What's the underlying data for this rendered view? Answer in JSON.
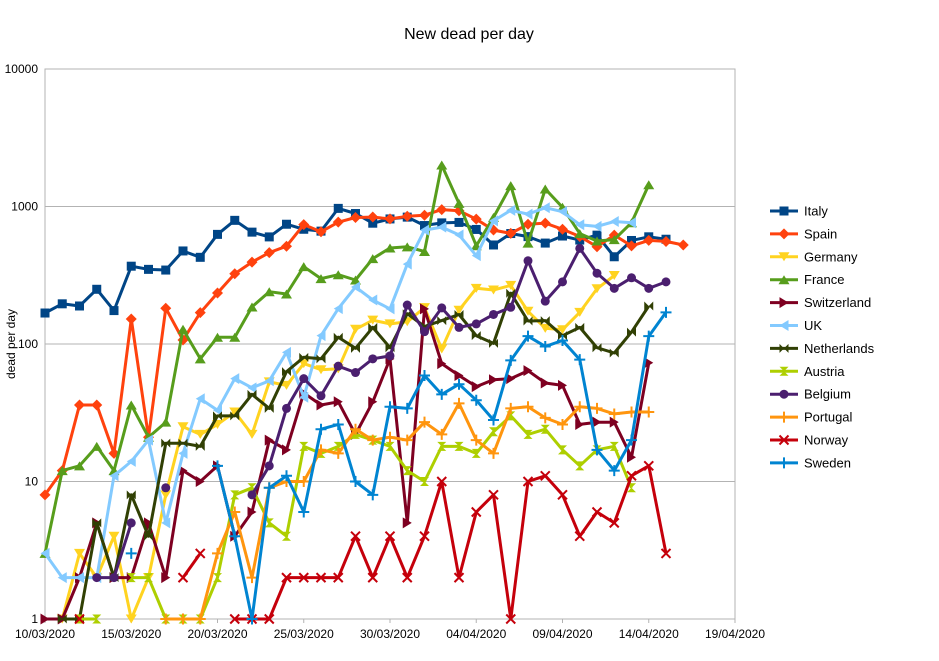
{
  "chart_data": {
    "type": "line",
    "title": "New dead per day",
    "ylabel": "dead per day",
    "xlabel": "",
    "y_scale": "log",
    "ylim": [
      1,
      10000
    ],
    "y_ticks": [
      "1",
      "10",
      "100",
      "1000",
      "10000"
    ],
    "xlim": [
      "2020-03-10",
      "2020-04-19"
    ],
    "x_ticks": [
      "10/03/2020",
      "15/03/2020",
      "20/03/2020",
      "25/03/2020",
      "30/03/2020",
      "04/04/2020",
      "09/04/2020",
      "14/04/2020",
      "19/04/2020"
    ],
    "grid": "horizontal",
    "legend_position": "right",
    "x_dates": [
      "2020-03-10",
      "2020-03-11",
      "2020-03-12",
      "2020-03-13",
      "2020-03-14",
      "2020-03-15",
      "2020-03-16",
      "2020-03-17",
      "2020-03-18",
      "2020-03-19",
      "2020-03-20",
      "2020-03-21",
      "2020-03-22",
      "2020-03-23",
      "2020-03-24",
      "2020-03-25",
      "2020-03-26",
      "2020-03-27",
      "2020-03-28",
      "2020-03-29",
      "2020-03-30",
      "2020-03-31",
      "2020-04-01",
      "2020-04-02",
      "2020-04-03",
      "2020-04-04",
      "2020-04-05",
      "2020-04-06",
      "2020-04-07",
      "2020-04-08",
      "2020-04-09",
      "2020-04-10",
      "2020-04-11",
      "2020-04-12",
      "2020-04-13",
      "2020-04-14",
      "2020-04-15",
      "2020-04-16",
      "2020-04-17"
    ],
    "series": [
      {
        "name": "Italy",
        "color": "#004586",
        "marker": "square",
        "values": [
          168,
          196,
          189,
          250,
          175,
          368,
          349,
          345,
          475,
          427,
          627,
          793,
          651,
          601,
          743,
          683,
          662,
          969,
          889,
          756,
          812,
          837,
          727,
          760,
          766,
          681,
          525,
          636,
          604,
          542,
          610,
          570,
          619,
          431,
          566,
          602,
          578,
          null,
          null
        ]
      },
      {
        "name": "Spain",
        "color": "#ff420e",
        "marker": "diamond",
        "values": [
          8,
          12,
          36,
          36,
          16,
          152,
          21,
          182,
          107,
          169,
          235,
          324,
          394,
          462,
          514,
          738,
          655,
          769,
          832,
          838,
          812,
          849,
          864,
          950,
          932,
          809,
          674,
          637,
          743,
          757,
          683,
          605,
          510,
          619,
          517,
          567,
          557,
          525,
          null
        ]
      },
      {
        "name": "Germany",
        "color": "#ffd320",
        "marker": "triangle-down",
        "values": [
          null,
          1,
          3,
          2,
          4,
          1,
          2,
          8,
          25,
          22,
          26,
          32,
          22,
          53,
          50,
          72,
          65,
          66,
          128,
          149,
          140,
          145,
          184,
          92,
          176,
          254,
          247,
          267,
          173,
          130,
          127,
          170,
          252,
          315,
          null,
          null,
          null,
          null,
          null
        ]
      },
      {
        "name": "France",
        "color": "#579d1c",
        "marker": "triangle-up",
        "values": [
          3,
          12,
          13,
          18,
          12,
          36,
          21,
          27,
          128,
          78,
          112,
          112,
          186,
          240,
          231,
          365,
          299,
          319,
          292,
          418,
          499,
          509,
          471,
          2004,
          1053,
          518,
          833,
          1417,
          541,
          1341,
          987,
          635,
          561,
          574,
          762,
          1438,
          null,
          null,
          null
        ]
      },
      {
        "name": "Switzerland",
        "color": "#7e0021",
        "marker": "triangle-right",
        "values": [
          1,
          1,
          2,
          5,
          2,
          2,
          5,
          2,
          12,
          10,
          13,
          4,
          6,
          20,
          17,
          44,
          36,
          38,
          22,
          38,
          78,
          5,
          180,
          72,
          59,
          49,
          55,
          56,
          64,
          52,
          50,
          26,
          27,
          27,
          15,
          73,
          null,
          null,
          null
        ]
      },
      {
        "name": "UK",
        "color": "#83caff",
        "marker": "triangle-left",
        "values": [
          3,
          2,
          2,
          2,
          11,
          14,
          20,
          5,
          16,
          40,
          33,
          56,
          48,
          54,
          87,
          41,
          115,
          181,
          260,
          209,
          180,
          381,
          673,
          708,
          621,
          439,
          786,
          938,
          881,
          980,
          917,
          737,
          717,
          778,
          761,
          null,
          null,
          null,
          null
        ]
      },
      {
        "name": "Netherlands",
        "color": "#314004",
        "marker": "bowtie",
        "values": [
          null,
          1,
          1,
          5,
          2,
          8,
          4,
          19,
          19,
          18,
          30,
          30,
          43,
          34,
          63,
          80,
          78,
          112,
          93,
          132,
          94,
          166,
          134,
          148,
          164,
          115,
          101,
          234,
          147,
          148,
          115,
          132,
          94,
          86,
          122,
          189,
          null,
          null,
          null
        ]
      },
      {
        "name": "Austria",
        "color": "#aecf00",
        "marker": "hourglass",
        "values": [
          null,
          null,
          1,
          1,
          null,
          2,
          2,
          1,
          1,
          1,
          2,
          8,
          9,
          5,
          4,
          18,
          16,
          18,
          22,
          20,
          18,
          12,
          10,
          18,
          18,
          16,
          23,
          30,
          22,
          24,
          17,
          13,
          17,
          18,
          9,
          null,
          null,
          null,
          null
        ]
      },
      {
        "name": "Belgium",
        "color": "#4b1f6f",
        "marker": "circle",
        "values": [
          null,
          null,
          null,
          2,
          2,
          5,
          null,
          9,
          null,
          null,
          null,
          null,
          8,
          13,
          34,
          56,
          42,
          69,
          62,
          78,
          82,
          192,
          123,
          183,
          132,
          140,
          164,
          185,
          403,
          205,
          283,
          496,
          327,
          254,
          303,
          254,
          283,
          null,
          null
        ]
      },
      {
        "name": "Portugal",
        "color": "#ff950e",
        "marker": "plus",
        "values": [
          null,
          null,
          null,
          null,
          null,
          null,
          null,
          1,
          1,
          1,
          3,
          6,
          2,
          9,
          10,
          10,
          17,
          16,
          24,
          20,
          21,
          20,
          27,
          22,
          37,
          20,
          16,
          34,
          35,
          29,
          26,
          35,
          34,
          31,
          32,
          32,
          null,
          null,
          null
        ]
      },
      {
        "name": "Norway",
        "color": "#c5000b",
        "marker": "cross",
        "values": [
          null,
          null,
          1,
          null,
          null,
          null,
          null,
          null,
          2,
          3,
          null,
          1,
          1,
          1,
          2,
          2,
          2,
          2,
          4,
          2,
          4,
          2,
          4,
          10,
          2,
          6,
          8,
          1,
          10,
          11,
          8,
          4,
          6,
          5,
          11,
          13,
          3,
          null,
          null
        ]
      },
      {
        "name": "Sweden",
        "color": "#0084d1",
        "marker": "plus",
        "values": [
          null,
          null,
          null,
          null,
          null,
          3,
          null,
          null,
          null,
          null,
          13,
          4,
          1,
          9,
          11,
          6,
          24,
          26,
          10,
          8,
          35,
          34,
          59,
          43,
          51,
          39,
          28,
          76,
          114,
          96,
          106,
          77,
          17,
          12,
          20,
          114,
          170,
          null,
          null
        ]
      }
    ]
  }
}
